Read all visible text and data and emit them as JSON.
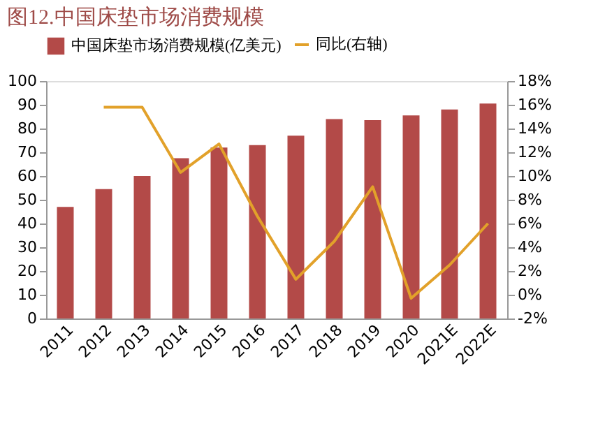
{
  "chart_data": {
    "type": "bar",
    "title": "图12.中国床垫市场消费规模",
    "categories": [
      "2011",
      "2012",
      "2013",
      "2014",
      "2015",
      "2016",
      "2017",
      "2018",
      "2019",
      "2020",
      "2021E",
      "2022E"
    ],
    "series": [
      {
        "name": "中国床垫市场消费规模(亿美元)",
        "color": "#b34a48",
        "values": [
          47,
          54.5,
          60,
          67.5,
          72,
          73,
          77,
          84,
          83.5,
          85.5,
          88,
          90.5
        ]
      },
      {
        "name": "同比(右轴)",
        "color": "#e2a12a",
        "type": "line",
        "axis": "y2",
        "values": [
          null,
          15.8,
          15.8,
          10.3,
          12.7,
          6.6,
          1.3,
          4.5,
          9.1,
          -0.3,
          2.5,
          6.0
        ]
      }
    ],
    "ylim": [
      0,
      100
    ],
    "yticks": [
      0,
      10,
      20,
      30,
      40,
      50,
      60,
      70,
      80,
      90,
      100
    ],
    "y2lim": [
      -2,
      18
    ],
    "y2ticks": [
      {
        "value": -2,
        "label": "-2%"
      },
      {
        "value": 0,
        "label": "0%"
      },
      {
        "value": 2,
        "label": "2%"
      },
      {
        "value": 4,
        "label": "4%"
      },
      {
        "value": 6,
        "label": "6%"
      },
      {
        "value": 8,
        "label": "8%"
      },
      {
        "value": 10,
        "label": "10%"
      },
      {
        "value": 12,
        "label": "12%"
      },
      {
        "value": 14,
        "label": "14%"
      },
      {
        "value": 16,
        "label": "16%"
      },
      {
        "value": 18,
        "label": "18%"
      }
    ],
    "legend": "top",
    "grid": false,
    "marker": "none",
    "line_style": "solid"
  }
}
